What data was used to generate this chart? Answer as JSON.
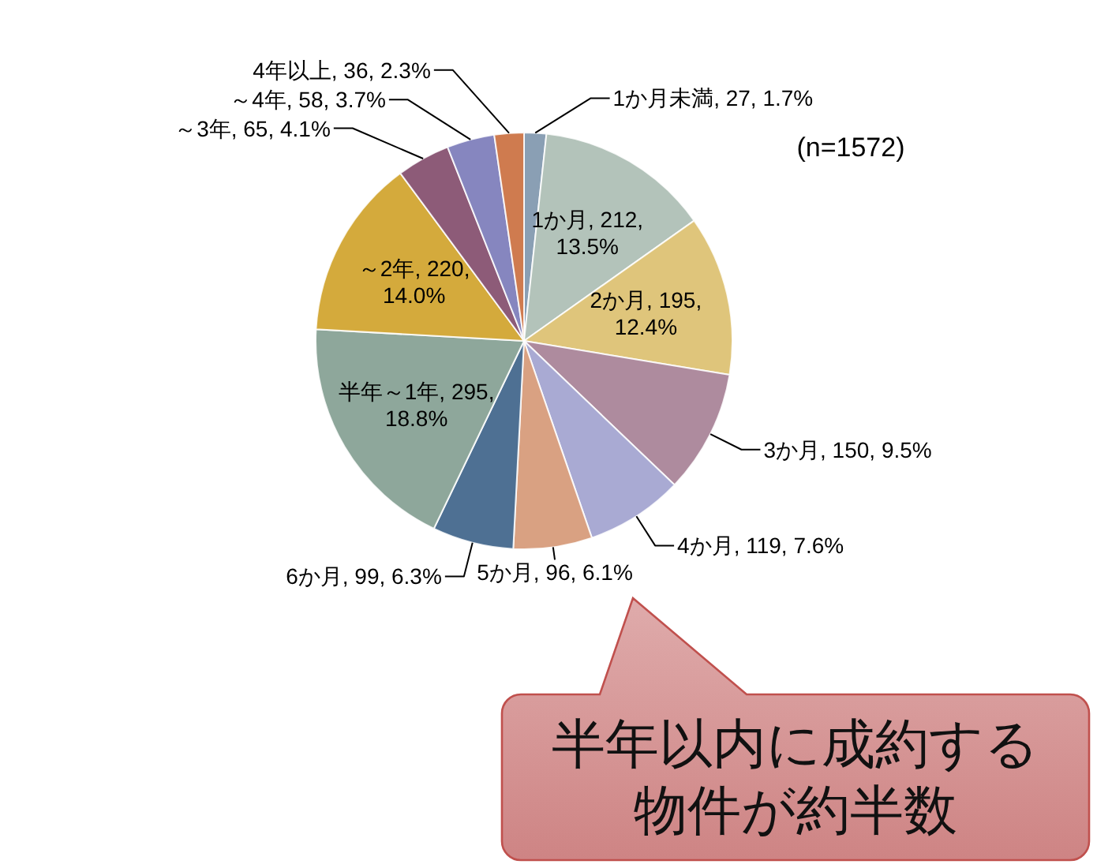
{
  "chart_data": {
    "type": "pie",
    "categories": [
      "1か月未満",
      "1か月",
      "2か月",
      "3か月",
      "4か月",
      "5か月",
      "6か月",
      "半年～1年",
      "～2年",
      "～3年",
      "～4年",
      "4年以上"
    ],
    "values": [
      27,
      212,
      195,
      150,
      119,
      96,
      99,
      295,
      220,
      65,
      58,
      36
    ],
    "colors": [
      "#8a9fb4",
      "#b3c3ba",
      "#dfc57b",
      "#ae8b9e",
      "#a9aad3",
      "#d9a182",
      "#4e7093",
      "#8ea79b",
      "#d4aa3c",
      "#8d5b78",
      "#8686bf",
      "#cf7b4f"
    ],
    "value_labels": [
      ", 27, 1.7%",
      ", 212, 13.5%",
      ", 195, 12.4%",
      ", 150, 9.5%",
      ", 119, 7.6%",
      ", 96, 6.1%",
      ", 99, 6.3%",
      ", 295, 18.8%",
      ", 220, 14.0%",
      ", 65, 4.1%",
      ", 58, 3.7%",
      ", 36, 2.3%"
    ],
    "annotations": [
      "(n=1572)",
      "半年以内に成約する物件が約半数"
    ]
  }
}
